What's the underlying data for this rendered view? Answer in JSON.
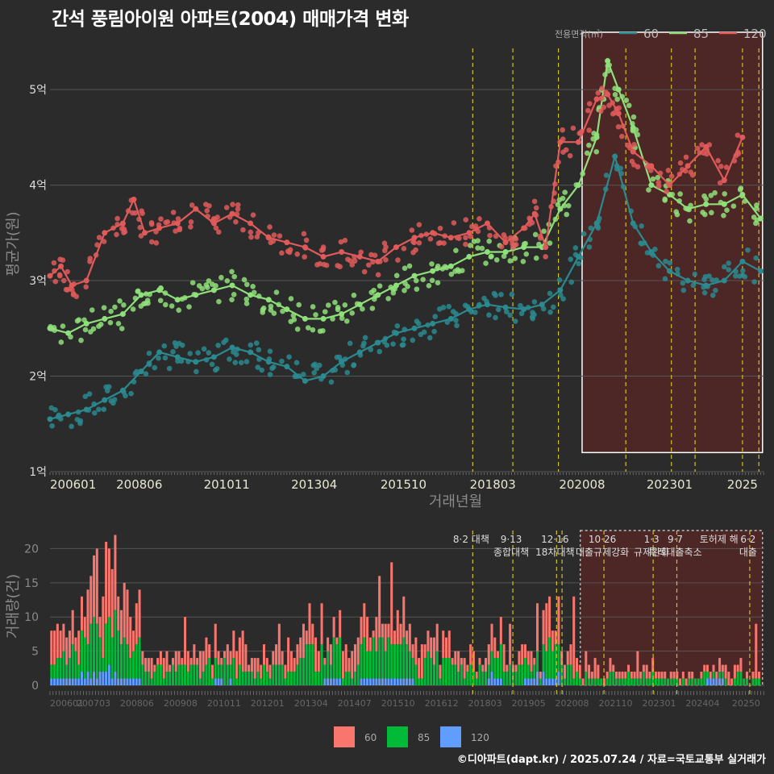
{
  "title": "간석 풍림아이원 아파트(2004) 매매가격 변화",
  "credit": "©디아파트(dapt.kr) / 2025.07.24 / 자료=국토교통부 실거래가",
  "colors": {
    "background": "#2b2b2b",
    "grid": "#555555",
    "area60_line": "#2a8a8f",
    "area85_line": "#8fe07a",
    "area120_line": "#e05a5a",
    "bar60": "#f8766d",
    "bar85": "#00ba38",
    "bar120": "#619cff",
    "highlight": "#5a2525",
    "policy_line": "#d4c020"
  },
  "chart_data": [
    {
      "type": "line",
      "title": "간석 풍림아이원 아파트(2004) 매매가격 변화",
      "xlabel": "거래년월",
      "ylabel": "평균가(원)",
      "legend_title": "전용면적(㎡)",
      "legend_position": "top-right",
      "x_ticks": [
        "200601",
        "200806",
        "201011",
        "201304",
        "201510",
        "201803",
        "202008",
        "202301",
        "2025"
      ],
      "y_ticks": [
        "1억",
        "2억",
        "3억",
        "4억",
        "5억"
      ],
      "ylim": [
        1.0,
        5.6
      ],
      "xlim": [
        2006.0,
        2025.6
      ],
      "highlight_region": {
        "x": [
          2020.6,
          2025.55
        ],
        "y": [
          1.2,
          5.6
        ]
      },
      "policy_lines_x": [
        2017.6,
        2018.7,
        2019.95,
        2021.8,
        2023.05,
        2023.7,
        2025.0,
        2025.45
      ],
      "series": [
        {
          "name": "60",
          "x": [
            2006.0,
            2006.5,
            2007.0,
            2007.5,
            2008.0,
            2008.5,
            2009.0,
            2009.5,
            2010.0,
            2010.5,
            2011.0,
            2011.5,
            2012.0,
            2012.5,
            2013.0,
            2013.5,
            2014.0,
            2014.5,
            2015.0,
            2015.5,
            2016.0,
            2016.5,
            2017.0,
            2017.5,
            2018.0,
            2018.5,
            2019.0,
            2019.5,
            2020.0,
            2020.5,
            2021.0,
            2021.5,
            2022.0,
            2022.5,
            2023.0,
            2023.5,
            2024.0,
            2024.5,
            2025.0,
            2025.5
          ],
          "y": [
            1.55,
            1.6,
            1.65,
            1.75,
            1.85,
            2.05,
            2.25,
            2.2,
            2.15,
            2.2,
            2.3,
            2.25,
            2.15,
            2.1,
            1.95,
            2.0,
            2.15,
            2.25,
            2.35,
            2.45,
            2.5,
            2.55,
            2.6,
            2.7,
            2.75,
            2.72,
            2.7,
            2.75,
            2.9,
            3.25,
            3.6,
            4.3,
            3.6,
            3.3,
            3.1,
            3.0,
            2.95,
            3.0,
            3.2,
            3.1
          ]
        },
        {
          "name": "85",
          "x": [
            2006.0,
            2006.5,
            2007.0,
            2007.5,
            2008.0,
            2008.5,
            2009.0,
            2009.5,
            2010.0,
            2010.5,
            2011.0,
            2011.5,
            2012.0,
            2012.5,
            2013.0,
            2013.5,
            2014.0,
            2014.5,
            2015.0,
            2015.5,
            2016.0,
            2016.5,
            2017.0,
            2017.5,
            2018.0,
            2018.5,
            2019.0,
            2019.5,
            2020.0,
            2020.5,
            2021.0,
            2021.3,
            2021.6,
            2022.0,
            2022.5,
            2023.0,
            2023.5,
            2024.0,
            2024.5,
            2025.0,
            2025.5
          ],
          "y": [
            2.5,
            2.45,
            2.55,
            2.6,
            2.65,
            2.85,
            2.9,
            2.8,
            2.85,
            2.9,
            2.95,
            2.85,
            2.8,
            2.7,
            2.6,
            2.6,
            2.65,
            2.75,
            2.85,
            2.95,
            3.05,
            3.1,
            3.15,
            3.25,
            3.3,
            3.3,
            3.35,
            3.35,
            3.75,
            4.0,
            4.5,
            5.3,
            5.0,
            4.6,
            4.0,
            3.9,
            3.75,
            3.8,
            3.8,
            3.9,
            3.65
          ]
        },
        {
          "name": "120",
          "x": [
            2006.0,
            2006.3,
            2006.6,
            2007.0,
            2007.5,
            2008.0,
            2008.3,
            2008.6,
            2009.0,
            2009.5,
            2010.0,
            2010.5,
            2011.0,
            2011.5,
            2012.0,
            2012.5,
            2013.0,
            2013.5,
            2014.0,
            2014.5,
            2015.0,
            2015.5,
            2016.0,
            2016.5,
            2017.0,
            2017.5,
            2018.0,
            2018.5,
            2019.0,
            2019.3,
            2019.6,
            2020.0,
            2020.5,
            2021.0,
            2021.3,
            2021.6,
            2022.0,
            2022.5,
            2023.0,
            2023.5,
            2024.0,
            2024.5,
            2025.0
          ],
          "y": [
            3.05,
            3.15,
            2.95,
            3.0,
            3.5,
            3.6,
            3.85,
            3.5,
            3.55,
            3.6,
            3.75,
            3.6,
            3.7,
            3.6,
            3.45,
            3.4,
            3.35,
            3.25,
            3.3,
            3.25,
            3.2,
            3.35,
            3.45,
            3.5,
            3.45,
            3.5,
            3.6,
            3.4,
            3.55,
            3.7,
            3.35,
            4.45,
            4.45,
            4.9,
            4.95,
            4.75,
            4.35,
            4.2,
            4.0,
            4.2,
            4.4,
            4.05,
            4.5
          ]
        }
      ]
    },
    {
      "type": "bar",
      "ylabel": "거래량(건)",
      "y_ticks": [
        "0",
        "5",
        "10",
        "15",
        "20"
      ],
      "ylim": [
        0,
        23
      ],
      "x_ticks": [
        "200601",
        "200703",
        "200806",
        "200908",
        "201011",
        "201201",
        "201304",
        "201407",
        "201510",
        "201612",
        "201803",
        "201905",
        "202008",
        "202110",
        "202301",
        "202404",
        "20250"
      ],
      "xlim": [
        2006.0,
        2025.6
      ],
      "highlight_region": {
        "x": [
          2020.55,
          2025.55
        ]
      },
      "policy_lines_x": [
        2017.6,
        2018.7,
        2019.9,
        2020.05,
        2021.2,
        2022.55,
        2023.2,
        2025.2
      ],
      "annotations": [
        {
          "x": 2017.6,
          "lines": [
            "8·2 대책"
          ]
        },
        {
          "x": 2018.7,
          "lines": [
            "9·13",
            "종합대책"
          ]
        },
        {
          "x": 2019.9,
          "lines": [
            "12·16",
            "18차대책"
          ]
        },
        {
          "x": 2021.2,
          "lines": [
            "10·26",
            "대출규제강화"
          ]
        },
        {
          "x": 2022.55,
          "lines": [
            "1·3",
            "규제완화"
          ]
        },
        {
          "x": 2023.2,
          "lines": [
            "9·7",
            "특례대출축소"
          ]
        },
        {
          "x": 2024.4,
          "lines": [
            "토허제 해"
          ]
        },
        {
          "x": 2025.2,
          "lines": [
            "6·2",
            "대출"
          ]
        }
      ],
      "legend": [
        "60",
        "85",
        "120"
      ],
      "series": [
        {
          "name": "60",
          "x": [
            2006.5,
            2007.0,
            2007.5,
            2008.0,
            2008.5,
            2009.0,
            2009.5,
            2010.0,
            2010.5,
            2011.0,
            2011.5,
            2012.0,
            2012.5,
            2013.0,
            2013.5,
            2014.0,
            2014.5,
            2015.0,
            2015.5,
            2016.0,
            2016.5,
            2017.0,
            2017.5,
            2018.0,
            2018.5,
            2019.0,
            2019.5,
            2020.0,
            2020.5,
            2021.0,
            2021.5,
            2022.0,
            2022.5,
            2023.0,
            2023.5,
            2024.0,
            2024.5,
            2025.0,
            2025.5
          ],
          "values": [
            3,
            5,
            6,
            8,
            5,
            3,
            2,
            2,
            3,
            3,
            3,
            2,
            2,
            3,
            4,
            3,
            3,
            3,
            3,
            4,
            3,
            3,
            2,
            2,
            3,
            2,
            2,
            5,
            3,
            2,
            1,
            1,
            1,
            1,
            1,
            1,
            1,
            2,
            1
          ]
        },
        {
          "name": "85",
          "x": [
            2006.5,
            2007.0,
            2007.5,
            2008.0,
            2008.5,
            2009.0,
            2009.5,
            2010.0,
            2010.5,
            2011.0,
            2011.5,
            2012.0,
            2012.5,
            2013.0,
            2013.5,
            2014.0,
            2014.5,
            2015.0,
            2015.5,
            2016.0,
            2016.5,
            2017.0,
            2017.5,
            2018.0,
            2018.5,
            2019.0,
            2019.5,
            2020.0,
            2020.5,
            2021.0,
            2021.5,
            2022.0,
            2022.5,
            2023.0,
            2023.5,
            2024.0,
            2024.5,
            2025.0,
            2025.5
          ],
          "values": [
            3,
            4,
            5,
            6,
            4,
            3,
            2,
            2,
            3,
            3,
            3,
            2,
            2,
            3,
            4,
            4,
            3,
            4,
            4,
            4,
            3,
            3,
            2,
            2,
            3,
            2,
            2,
            4,
            2,
            1,
            1,
            1,
            1,
            1,
            1,
            1,
            1,
            1,
            1
          ]
        },
        {
          "name": "120",
          "x": [
            2006.5,
            2007.0,
            2007.5,
            2008.0,
            2008.5,
            2009.0,
            2009.5,
            2010.0,
            2010.5,
            2011.0,
            2011.5,
            2012.0,
            2012.5,
            2013.0,
            2013.5,
            2014.0,
            2014.5,
            2015.0,
            2015.5,
            2016.0,
            2016.5,
            2017.0,
            2017.5,
            2018.0,
            2018.5,
            2019.0,
            2019.5,
            2020.0,
            2020.5,
            2021.0,
            2021.5,
            2022.0,
            2022.5,
            2023.0,
            2023.5,
            2024.0,
            2024.5,
            2025.0,
            2025.5
          ],
          "values": [
            1,
            1,
            2,
            2,
            1,
            0,
            0,
            0,
            0,
            1,
            0,
            0,
            0,
            0,
            0,
            1,
            0,
            1,
            1,
            1,
            0,
            0,
            0,
            0,
            1,
            0,
            1,
            1,
            0,
            0,
            0,
            0,
            0,
            0,
            0,
            0,
            1,
            0,
            0
          ]
        }
      ]
    }
  ]
}
